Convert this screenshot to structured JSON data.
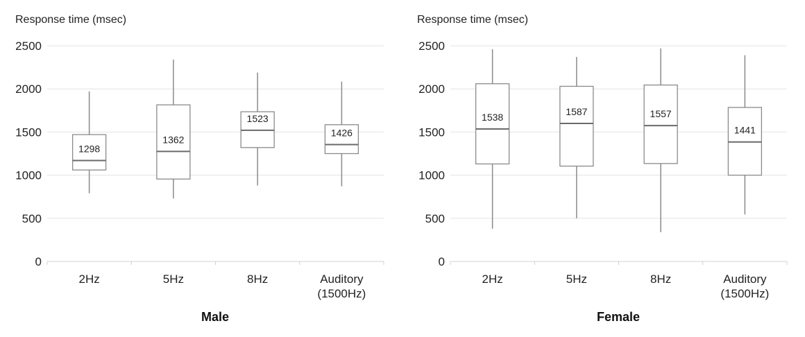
{
  "chart_data": [
    {
      "type": "box",
      "title": "Male",
      "ylabel": "Response time (msec)",
      "ylim": [
        0,
        2500
      ],
      "yticks": [
        0,
        500,
        1000,
        1500,
        2000,
        2500
      ],
      "grid": true,
      "categories": [
        {
          "label": [
            "2Hz"
          ],
          "min": 790,
          "q1": 1060,
          "median": 1170,
          "q3": 1470,
          "max": 1970,
          "value_label": "1298"
        },
        {
          "label": [
            "5Hz"
          ],
          "min": 730,
          "q1": 955,
          "median": 1275,
          "q3": 1815,
          "max": 2340,
          "value_label": "1362"
        },
        {
          "label": [
            "8Hz"
          ],
          "min": 880,
          "q1": 1320,
          "median": 1520,
          "q3": 1735,
          "max": 2190,
          "value_label": "1523"
        },
        {
          "label": [
            "Auditory",
            "(1500Hz)"
          ],
          "min": 870,
          "q1": 1250,
          "median": 1355,
          "q3": 1585,
          "max": 2085,
          "value_label": "1426"
        }
      ]
    },
    {
      "type": "box",
      "title": "Female",
      "ylabel": "Response time (msec)",
      "ylim": [
        0,
        2500
      ],
      "yticks": [
        0,
        500,
        1000,
        1500,
        2000,
        2500
      ],
      "grid": true,
      "categories": [
        {
          "label": [
            "2Hz"
          ],
          "min": 380,
          "q1": 1130,
          "median": 1535,
          "q3": 2060,
          "max": 2460,
          "value_label": "1538"
        },
        {
          "label": [
            "5Hz"
          ],
          "min": 500,
          "q1": 1105,
          "median": 1600,
          "q3": 2030,
          "max": 2370,
          "value_label": "1587"
        },
        {
          "label": [
            "8Hz"
          ],
          "min": 340,
          "q1": 1135,
          "median": 1575,
          "q3": 2045,
          "max": 2470,
          "value_label": "1557"
        },
        {
          "label": [
            "Auditory",
            "(1500Hz)"
          ],
          "min": 545,
          "q1": 1000,
          "median": 1385,
          "q3": 1785,
          "max": 2390,
          "value_label": "1441"
        }
      ]
    }
  ]
}
